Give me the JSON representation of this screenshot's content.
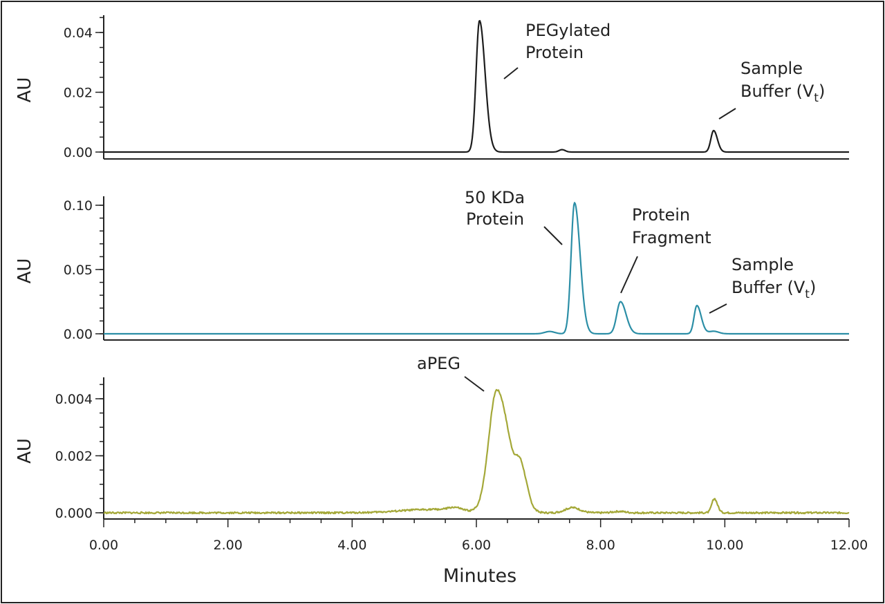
{
  "chart_data": [
    {
      "type": "line",
      "panel": "top",
      "ylabel": "AU",
      "color": "#1c1c1c",
      "xlim": [
        0,
        12
      ],
      "ylim": [
        0,
        0.044
      ],
      "yticks": [
        "0.00",
        "0.02",
        "0.04"
      ],
      "ytick_values": [
        0,
        0.02,
        0.04
      ],
      "yminor_step": 0.005,
      "peaks": [
        {
          "t": 6.05,
          "h": 0.044,
          "w": 0.055,
          "tail": 0.09
        },
        {
          "t": 7.38,
          "h": 0.0008,
          "w": 0.05,
          "tail": 0.05
        },
        {
          "t": 9.82,
          "h": 0.0072,
          "w": 0.045,
          "tail": 0.06
        }
      ],
      "annotations": [
        {
          "line1": "PEGylated",
          "line2": "Protein"
        },
        {
          "line1": "Sample",
          "line2": "Buffer (V",
          "sub": "t",
          "close": ")"
        }
      ]
    },
    {
      "type": "line",
      "panel": "middle",
      "ylabel": "AU",
      "color": "#2b8ea6",
      "xlim": [
        0,
        12
      ],
      "ylim": [
        0,
        0.102
      ],
      "yticks": [
        "0.00",
        "0.05",
        "0.10"
      ],
      "ytick_values": [
        0,
        0.05,
        0.1
      ],
      "yminor_step": 0.01,
      "peaks": [
        {
          "t": 7.18,
          "h": 0.0018,
          "w": 0.08,
          "tail": 0.08
        },
        {
          "t": 7.58,
          "h": 0.102,
          "w": 0.055,
          "tail": 0.09
        },
        {
          "t": 8.32,
          "h": 0.025,
          "w": 0.06,
          "tail": 0.09
        },
        {
          "t": 9.55,
          "h": 0.022,
          "w": 0.045,
          "tail": 0.07
        },
        {
          "t": 9.82,
          "h": 0.002,
          "w": 0.08,
          "tail": 0.08
        }
      ],
      "annotations": [
        {
          "line1": "50 KDa",
          "line2": "Protein"
        },
        {
          "line1": "Protein",
          "line2": "Fragment"
        },
        {
          "line1": "Sample",
          "line2": "Buffer (V",
          "sub": "t",
          "close": ")"
        }
      ]
    },
    {
      "type": "line",
      "panel": "bottom",
      "ylabel": "AU",
      "color": "#a4a838",
      "xlim": [
        0,
        12
      ],
      "ylim": [
        0,
        0.0046
      ],
      "yticks": [
        "0.000",
        "0.002",
        "0.004"
      ],
      "ytick_values": [
        0,
        0.002,
        0.004
      ],
      "yminor_step": 0.0005,
      "peaks": [
        {
          "t": 5.3,
          "h": 0.00012,
          "w": 0.5,
          "tail": 0.5
        },
        {
          "t": 5.65,
          "h": 0.0001,
          "w": 0.1,
          "tail": 0.1
        },
        {
          "t": 6.33,
          "h": 0.0043,
          "w": 0.13,
          "tail": 0.2
        },
        {
          "t": 6.72,
          "h": 0.0012,
          "w": 0.08,
          "tail": 0.1
        },
        {
          "t": 7.55,
          "h": 0.00018,
          "w": 0.12,
          "tail": 0.12
        },
        {
          "t": 8.3,
          "h": 5e-05,
          "w": 0.1,
          "tail": 0.1
        },
        {
          "t": 9.83,
          "h": 0.0005,
          "w": 0.04,
          "tail": 0.05
        }
      ],
      "annotations": [
        {
          "line1": "aPEG"
        }
      ],
      "xlabel": "Minutes",
      "xticks": [
        "0.00",
        "2.00",
        "4.00",
        "6.00",
        "8.00",
        "10.00",
        "12.00"
      ],
      "xtick_values": [
        0,
        2,
        4,
        6,
        8,
        10,
        12
      ]
    }
  ]
}
